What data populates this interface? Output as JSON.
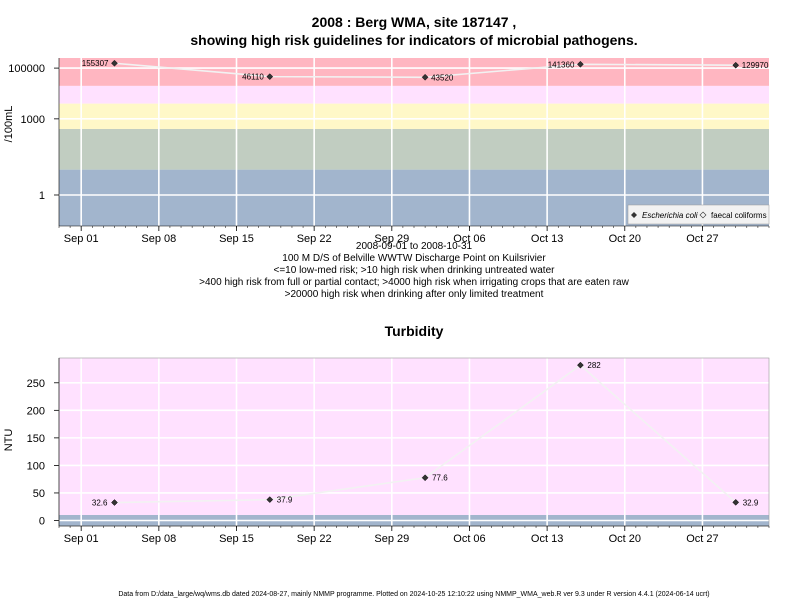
{
  "chart_data": [
    {
      "type": "line",
      "title_line1": "2008 : Berg WMA, site 187147 ,",
      "title_line2": "showing high risk guidelines for indicators of microbial pathogens.",
      "ylabel": "/100mL",
      "y_scale": "log10",
      "y_ticks": [
        "1",
        "1000",
        "100000"
      ],
      "x_ticks": [
        "Sep 01",
        "Sep 08",
        "Sep 15",
        "Sep 22",
        "Sep 29",
        "Oct 06",
        "Oct 13",
        "Oct 20",
        "Oct 27"
      ],
      "x_range": [
        "2008-08-30",
        "2008-11-02"
      ],
      "grid": true,
      "risk_bands": [
        {
          "from": 0.06,
          "to": 10,
          "color": "#a2b5cd"
        },
        {
          "from": 10,
          "to": 400,
          "color": "#c1cdc1"
        },
        {
          "from": 400,
          "to": 4000,
          "color": "#fff8c8"
        },
        {
          "from": 4000,
          "to": 20000,
          "color": "#ffe1ff"
        },
        {
          "from": 20000,
          "to": 250000,
          "color": "#ffb6c1"
        }
      ],
      "legend": {
        "placement": "bottom-right",
        "entries": [
          "Escherichia coli",
          "faecal coliforms"
        ]
      },
      "series": [
        {
          "name": "Escherichia coli",
          "x": [
            "2008-09-04",
            "2008-09-18",
            "2008-10-02",
            "2008-10-16",
            "2008-10-30"
          ],
          "values": [
            155307,
            46110,
            43520,
            141360,
            129970
          ],
          "labels": [
            "155307",
            "46110",
            "43520",
            "141360",
            "129970"
          ]
        }
      ],
      "subtext": [
        "2008-09-01 to 2008-10-31",
        "100 M D/S of Belville WWTW Discharge Point on Kuilsrivier",
        "<=10 low-med risk; >10 high risk when drinking untreated water",
        ">400 high risk from full or partial contact; >4000 high risk when irrigating crops that are eaten raw",
        ">20000 high risk when drinking after only limited treatment"
      ]
    },
    {
      "type": "line",
      "title": "Turbidity",
      "ylabel": "NTU",
      "ylim": [
        -10,
        295
      ],
      "y_ticks": [
        0,
        50,
        100,
        150,
        200,
        250
      ],
      "x_ticks": [
        "Sep 01",
        "Sep 08",
        "Sep 15",
        "Sep 22",
        "Sep 29",
        "Oct 06",
        "Oct 13",
        "Oct 20",
        "Oct 27"
      ],
      "x_range": [
        "2008-08-30",
        "2008-11-02"
      ],
      "grid": true,
      "bands": [
        {
          "from": -10,
          "to": 10,
          "color": "#a2b5cd"
        },
        {
          "from": 10,
          "to": 295,
          "color": "#ffe1ff"
        }
      ],
      "series": [
        {
          "x": [
            "2008-09-04",
            "2008-09-18",
            "2008-10-02",
            "2008-10-16",
            "2008-10-30"
          ],
          "values": [
            32.6,
            37.9,
            77.6,
            282,
            32.9
          ],
          "labels": [
            "32.6",
            "37.9",
            "77.6",
            "282",
            "32.9"
          ]
        }
      ]
    }
  ],
  "footer": "Data from D:/data_large/wq/wms.db dated 2024-08-27, mainly NMMP programme. Plotted on 2024-10-25 12:10:22 using NMMP_WMA_web.R ver 9.3 under R version 4.4.1 (2024-06-14 ucrt)"
}
